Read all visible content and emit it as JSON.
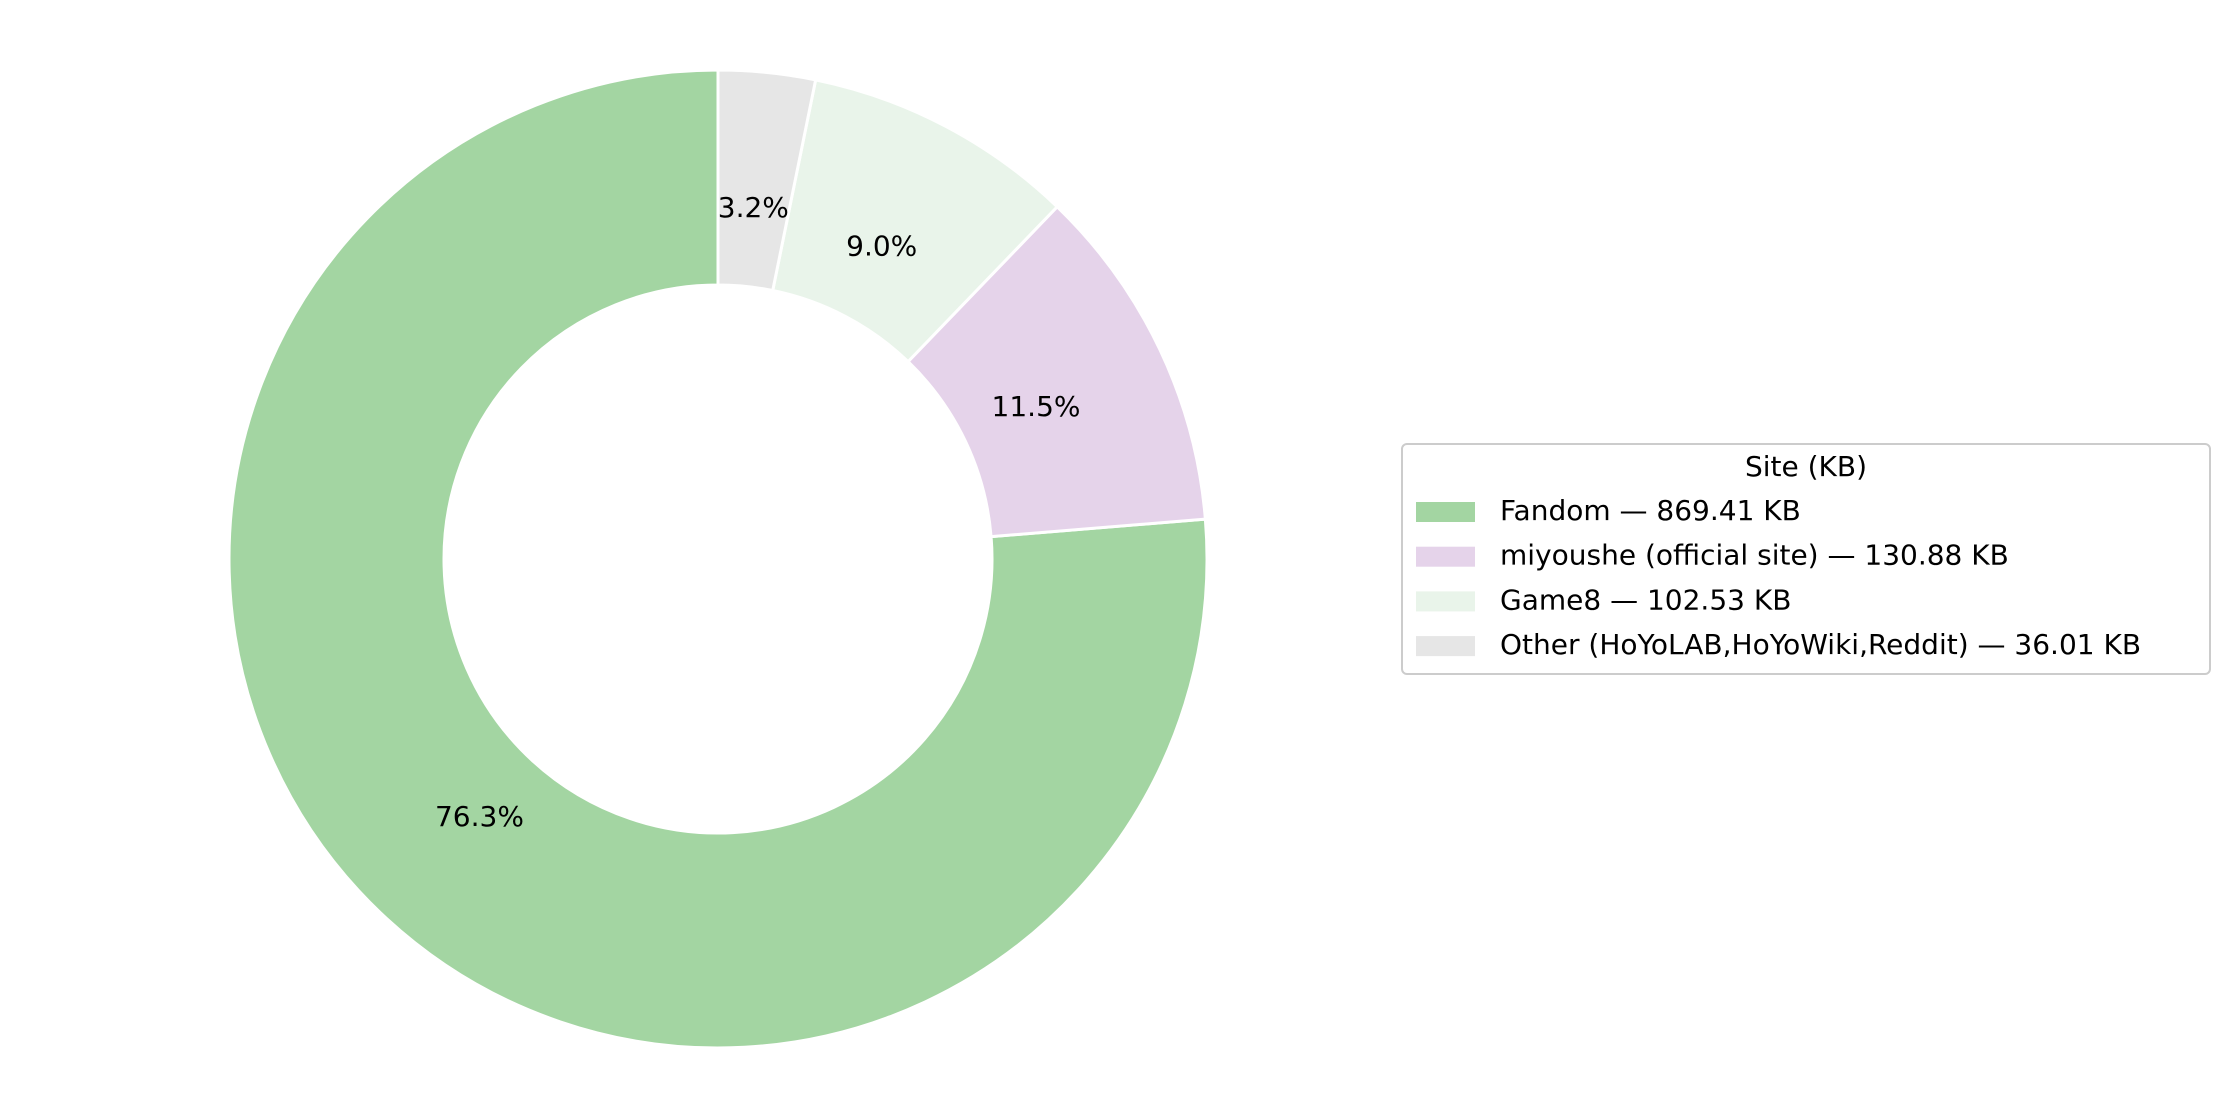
{
  "chart_data": {
    "type": "pie",
    "legend_title": "Site (KB)",
    "categories": [
      "Fandom — 869.41 KB",
      "miyoushe (official site) — 130.88 KB",
      "Game8 — 102.53 KB",
      "Other (HoYoLAB,HoYoWiki,Reddit) — 36.01 KB"
    ],
    "values": [
      76.3,
      11.5,
      9.0,
      3.2
    ],
    "value_labels": [
      "76.3%",
      "11.5%",
      "9.0%",
      "3.2%"
    ],
    "colors": [
      "#a3d5a2",
      "#e5d3ea",
      "#e9f4ea",
      "#e6e6e6"
    ],
    "legend": "right"
  }
}
